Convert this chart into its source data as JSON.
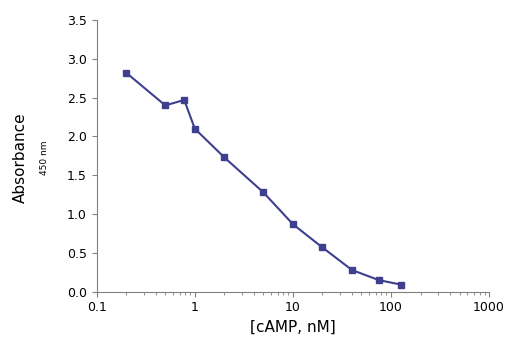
{
  "x_values": [
    0.2,
    0.5,
    0.78,
    1.0,
    2.0,
    5.0,
    10.0,
    20.0,
    40.0,
    75.0,
    128.0
  ],
  "y_values": [
    2.82,
    2.4,
    2.47,
    2.1,
    1.73,
    1.28,
    0.87,
    0.57,
    0.28,
    0.15,
    0.09
  ],
  "color": "#3f3f8f",
  "marker": "s",
  "markersize": 5,
  "linewidth": 1.5,
  "xlabel": "[cAMP, nM]",
  "ylabel_main": "Absorbance",
  "ylabel_sub": "450 nm",
  "xlim": [
    0.2,
    1000
  ],
  "ylim": [
    0.0,
    3.5
  ],
  "yticks": [
    0.0,
    0.5,
    1.0,
    1.5,
    2.0,
    2.5,
    3.0,
    3.5
  ],
  "background_color": "#ffffff",
  "xlabel_fontsize": 11,
  "ylabel_fontsize": 11,
  "tick_fontsize": 9
}
